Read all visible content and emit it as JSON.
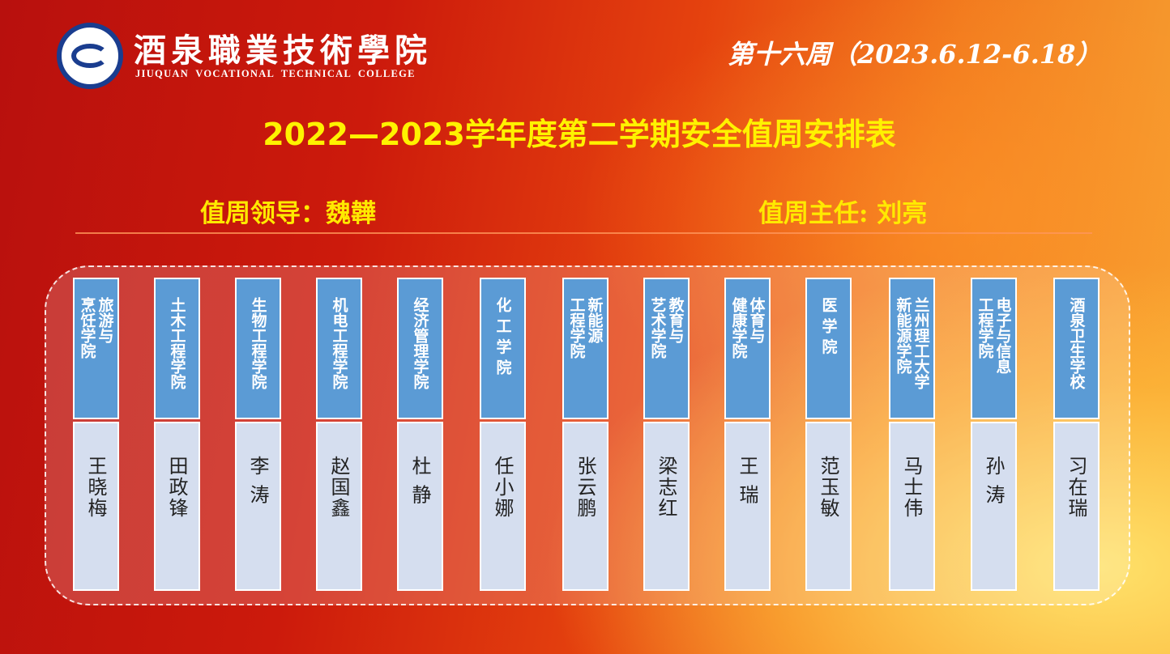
{
  "header": {
    "school_name_cn": "酒泉職業技術學院",
    "school_name_en": "JIUQUAN VOCATIONAL TECHNICAL COLLEGE",
    "week": "第十六周（2023.6.12-6.18）"
  },
  "title": "2022—2023学年度第二学期安全值周安排表",
  "leader": "值周领导：魏韡",
  "director": "值周主任: 刘亮",
  "columns": [
    {
      "dept": "旅游与\n烹饪学院",
      "name": "王晓梅"
    },
    {
      "dept": "土木工程学院",
      "name": "田政锋"
    },
    {
      "dept": "生物工程学院",
      "name": "李 涛"
    },
    {
      "dept": "机电工程学院",
      "name": "赵国鑫"
    },
    {
      "dept": "经济管理学院",
      "name": "杜 静"
    },
    {
      "dept": "化 工 学 院",
      "name": "任小娜"
    },
    {
      "dept": "新能源\n工程学院",
      "name": "张云鹏"
    },
    {
      "dept": "教育与\n艺术学院",
      "name": "梁志红"
    },
    {
      "dept": "体育与\n健康学院",
      "name": "王 瑞"
    },
    {
      "dept": "医 学 院",
      "name": "范玉敏"
    },
    {
      "dept": "兰州理工大学\n新能源学院",
      "name": "马士伟"
    },
    {
      "dept": "电子与信息\n工程学院",
      "name": "孙 涛"
    },
    {
      "dept": "酒泉卫生学校",
      "name": "习在瑞"
    }
  ]
}
